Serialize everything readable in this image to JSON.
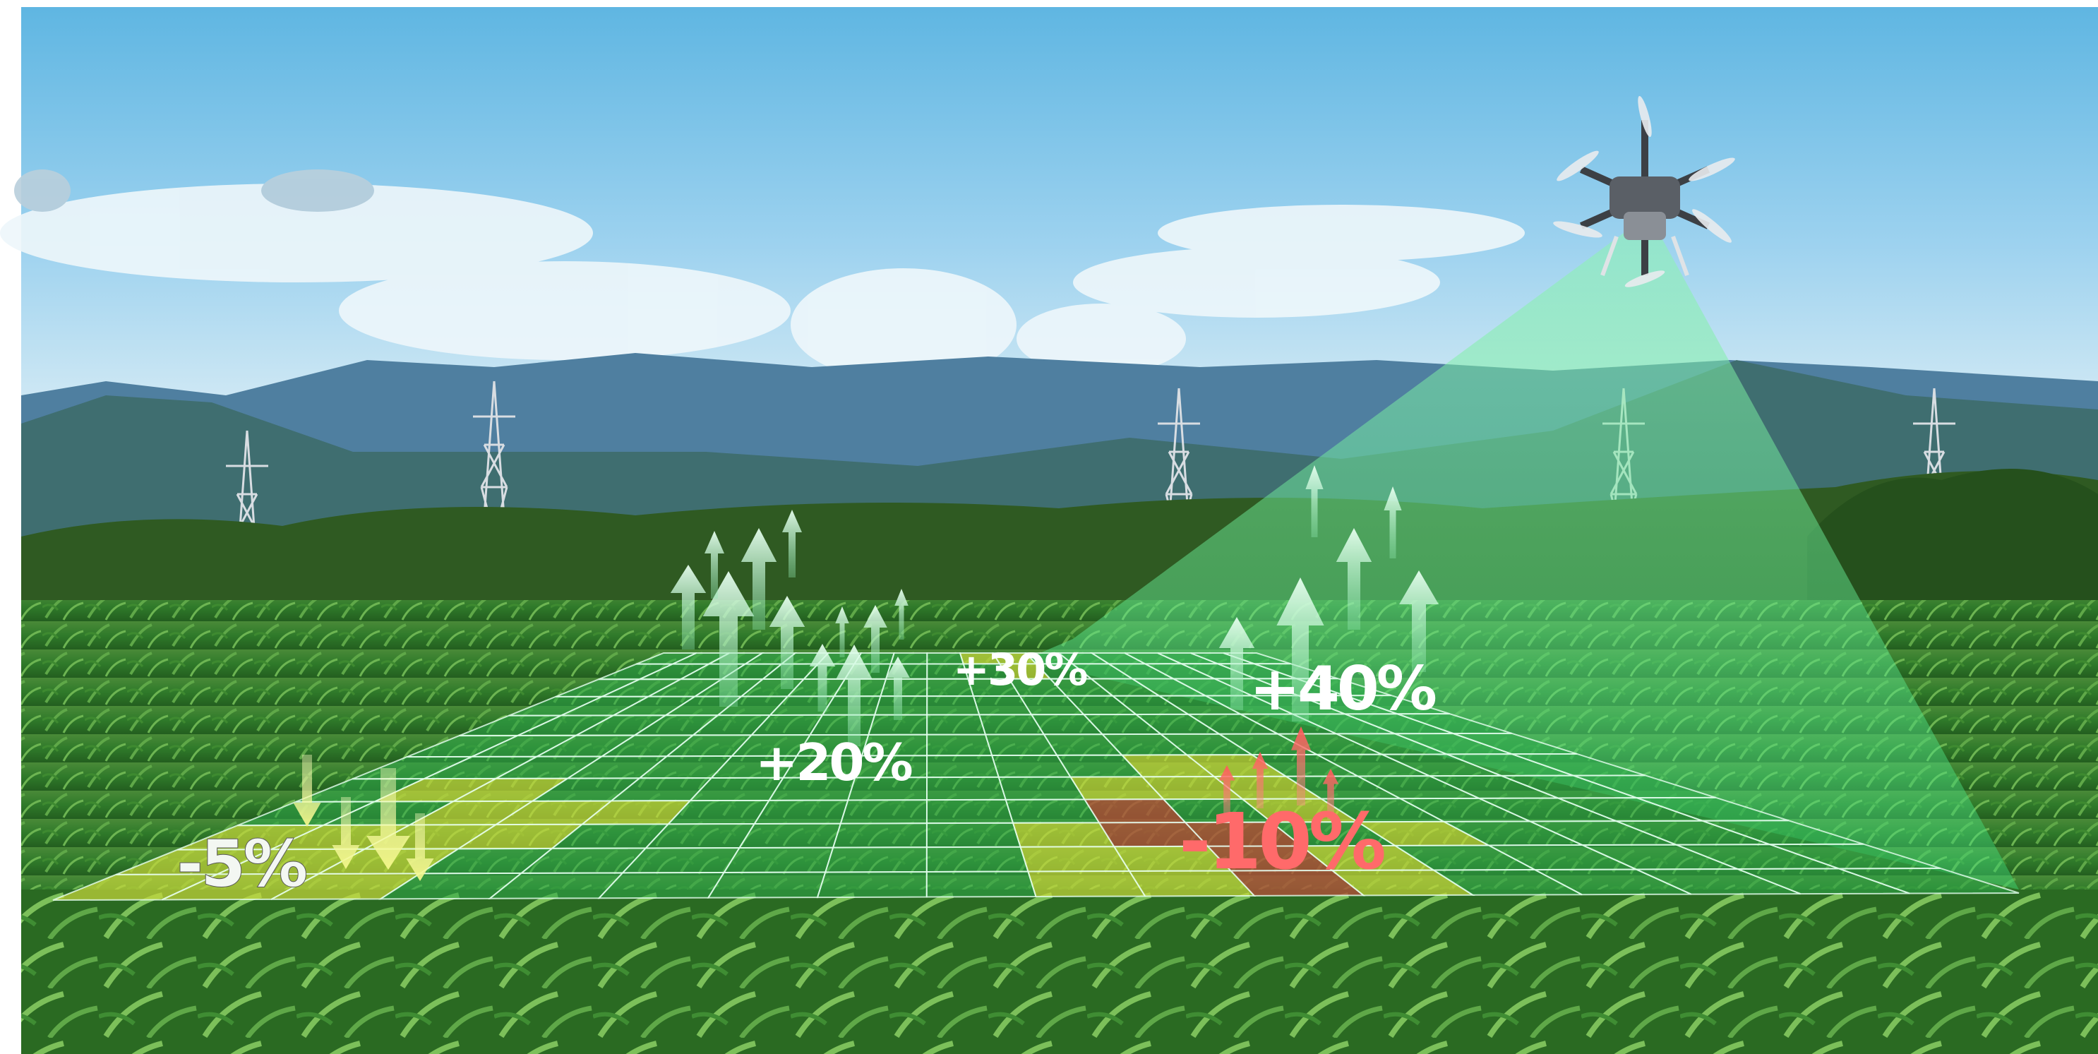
{
  "labels": {
    "minus5": "-5%",
    "plus20": "+20%",
    "plus30": "+30%",
    "plus40": "+40%",
    "minus10": "-10%"
  },
  "colors": {
    "sky_top": "#5fb6e2",
    "sky_bottom": "#cfe8f4",
    "mountain_far": "#4f7fa0",
    "mountain_near": "#3f6e70",
    "treeline": "#2f5a22",
    "field": "#3c8a2c",
    "grid_cell": "#2ea84a",
    "grid_line": "#e6fff0",
    "increase": "#c8f5d8",
    "yellow_zone": "#c9d83a",
    "decrease_arrow": "#f0f59a",
    "loss_zone": "#b0503a",
    "loss_text": "#ff6a6a",
    "scan_beam": "#6ff0a0",
    "drone": "#5a5f66"
  },
  "icons": [
    "drone-icon",
    "up-arrow-icon",
    "down-arrow-icon",
    "power-tower-icon"
  ]
}
